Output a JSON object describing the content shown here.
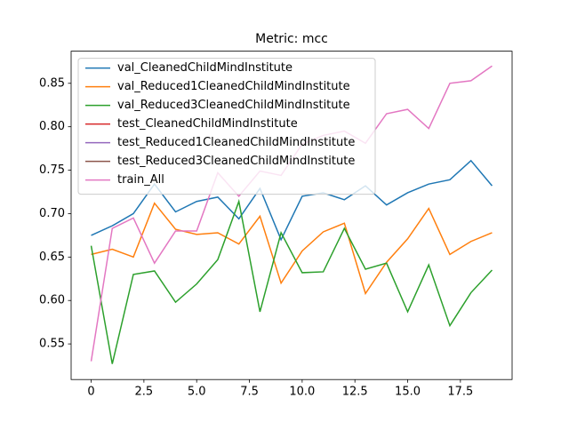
{
  "chart_data": {
    "type": "line",
    "title": "Metric: mcc",
    "x": [
      0,
      1,
      2,
      3,
      4,
      5,
      6,
      7,
      8,
      9,
      10,
      11,
      12,
      13,
      14,
      15,
      16,
      17,
      18,
      19
    ],
    "series": [
      {
        "name": "val_CleanedChildMindInstitute",
        "color": "#1f77b4",
        "values": [
          0.675,
          0.686,
          0.7,
          0.734,
          0.702,
          0.714,
          0.719,
          0.694,
          0.729,
          0.67,
          0.72,
          0.724,
          0.716,
          0.732,
          0.71,
          0.724,
          0.734,
          0.739,
          0.761,
          0.732
        ]
      },
      {
        "name": "val_Reduced1CleanedChildMindInstitute",
        "color": "#ff7f0e",
        "values": [
          0.653,
          0.659,
          0.65,
          0.712,
          0.682,
          0.676,
          0.678,
          0.665,
          0.697,
          0.62,
          0.657,
          0.679,
          0.689,
          0.608,
          0.644,
          0.671,
          0.706,
          0.653,
          0.668,
          0.678
        ]
      },
      {
        "name": "val_Reduced3CleanedChildMindInstitute",
        "color": "#2ca02c",
        "values": [
          0.663,
          0.527,
          0.63,
          0.634,
          0.598,
          0.619,
          0.647,
          0.714,
          0.587,
          0.678,
          0.632,
          0.633,
          0.683,
          0.636,
          0.643,
          0.587,
          0.641,
          0.571,
          0.609,
          0.635
        ]
      },
      {
        "name": "test_CleanedChildMindInstitute",
        "color": "#d62728",
        "values": [
          null,
          null,
          null,
          null,
          null,
          null,
          null,
          null,
          null,
          null,
          null,
          null,
          null,
          null,
          null,
          null,
          null,
          null,
          null,
          null
        ]
      },
      {
        "name": "test_Reduced1CleanedChildMindInstitute",
        "color": "#9467bd",
        "values": [
          null,
          null,
          null,
          null,
          null,
          null,
          null,
          null,
          null,
          null,
          null,
          null,
          null,
          null,
          null,
          null,
          null,
          null,
          null,
          null
        ]
      },
      {
        "name": "test_Reduced3CleanedChildMindInstitute",
        "color": "#8c564b",
        "values": [
          null,
          null,
          null,
          null,
          null,
          null,
          null,
          null,
          null,
          null,
          null,
          null,
          null,
          null,
          null,
          null,
          null,
          null,
          null,
          null
        ]
      },
      {
        "name": "train_All",
        "color": "#e377c2",
        "values": [
          0.53,
          0.683,
          0.695,
          0.643,
          0.68,
          0.68,
          0.747,
          0.72,
          0.749,
          0.744,
          0.78,
          0.79,
          0.795,
          0.781,
          0.815,
          0.82,
          0.798,
          0.85,
          0.853,
          0.87
        ]
      }
    ],
    "xlim": [
      -0.95,
      19.95
    ],
    "xticks": [
      0,
      2.5,
      {
        "value": 5,
        "label": "5.0"
      },
      7.5,
      {
        "value": 10,
        "label": "10.0"
      },
      12.5,
      {
        "value": 15,
        "label": "15.0"
      },
      17.5
    ],
    "ylim": [
      0.509,
      0.887
    ],
    "yticks": [
      0.55,
      {
        "value": 0.6,
        "label": "0.60"
      },
      0.65,
      {
        "value": 0.7,
        "label": "0.70"
      },
      0.75,
      {
        "value": 0.8,
        "label": "0.80"
      },
      0.85
    ],
    "legend": "upper left"
  }
}
